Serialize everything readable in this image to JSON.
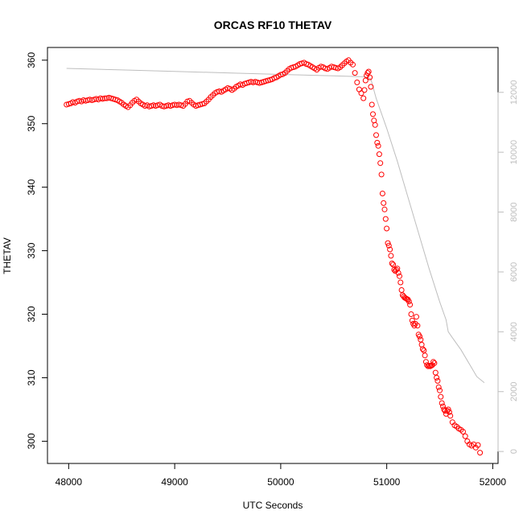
{
  "chart_data": {
    "type": "scatter",
    "title": "ORCAS RF10 THETAV",
    "xlabel": "UTC Seconds",
    "ylabel": "THETAV",
    "xlim": [
      47800,
      52050
    ],
    "ylim": [
      296.5,
      362
    ],
    "y2lim": [
      -400,
      13500
    ],
    "x_ticks": [
      48000,
      49000,
      50000,
      51000,
      52000
    ],
    "y_ticks": [
      300,
      310,
      320,
      330,
      340,
      350,
      360
    ],
    "y2_ticks": [
      0,
      2000,
      4000,
      6000,
      8000,
      10000,
      12000
    ],
    "grid": false,
    "legend": "none",
    "series": [
      {
        "type": "scatter",
        "color": "#ff0000",
        "marker": "open-circle",
        "points": [
          [
            47980,
            353.0
          ],
          [
            48000,
            353.1
          ],
          [
            48020,
            353.2
          ],
          [
            48040,
            353.4
          ],
          [
            48060,
            353.3
          ],
          [
            48080,
            353.5
          ],
          [
            48100,
            353.6
          ],
          [
            48120,
            353.5
          ],
          [
            48140,
            353.7
          ],
          [
            48160,
            353.6
          ],
          [
            48180,
            353.7
          ],
          [
            48200,
            353.8
          ],
          [
            48220,
            353.7
          ],
          [
            48240,
            353.8
          ],
          [
            48260,
            353.9
          ],
          [
            48280,
            353.8
          ],
          [
            48300,
            354.0
          ],
          [
            48320,
            353.9
          ],
          [
            48340,
            354.0
          ],
          [
            48360,
            354.0
          ],
          [
            48380,
            354.1
          ],
          [
            48400,
            354.0
          ],
          [
            48420,
            353.9
          ],
          [
            48440,
            353.8
          ],
          [
            48460,
            353.7
          ],
          [
            48480,
            353.5
          ],
          [
            48500,
            353.3
          ],
          [
            48520,
            353.0
          ],
          [
            48540,
            352.8
          ],
          [
            48560,
            352.6
          ],
          [
            48580,
            352.9
          ],
          [
            48600,
            353.3
          ],
          [
            48620,
            353.6
          ],
          [
            48640,
            353.8
          ],
          [
            48660,
            353.5
          ],
          [
            48680,
            353.2
          ],
          [
            48700,
            353.0
          ],
          [
            48720,
            352.8
          ],
          [
            48740,
            352.9
          ],
          [
            48760,
            352.7
          ],
          [
            48780,
            352.8
          ],
          [
            48800,
            352.9
          ],
          [
            48820,
            352.8
          ],
          [
            48840,
            352.9
          ],
          [
            48860,
            353.0
          ],
          [
            48880,
            352.8
          ],
          [
            48900,
            352.7
          ],
          [
            48920,
            352.8
          ],
          [
            48940,
            352.9
          ],
          [
            48960,
            352.8
          ],
          [
            48980,
            352.9
          ],
          [
            49000,
            353.0
          ],
          [
            49020,
            352.9
          ],
          [
            49040,
            353.0
          ],
          [
            49060,
            352.9
          ],
          [
            49080,
            352.8
          ],
          [
            49100,
            353.1
          ],
          [
            49120,
            353.5
          ],
          [
            49140,
            353.6
          ],
          [
            49160,
            353.3
          ],
          [
            49180,
            353.0
          ],
          [
            49200,
            352.8
          ],
          [
            49220,
            352.9
          ],
          [
            49240,
            353.0
          ],
          [
            49260,
            353.1
          ],
          [
            49280,
            353.2
          ],
          [
            49300,
            353.5
          ],
          [
            49320,
            353.8
          ],
          [
            49340,
            354.2
          ],
          [
            49360,
            354.5
          ],
          [
            49380,
            354.8
          ],
          [
            49400,
            355.0
          ],
          [
            49420,
            355.1
          ],
          [
            49440,
            355.0
          ],
          [
            49460,
            355.2
          ],
          [
            49480,
            355.4
          ],
          [
            49500,
            355.6
          ],
          [
            49520,
            355.5
          ],
          [
            49540,
            355.3
          ],
          [
            49560,
            355.5
          ],
          [
            49580,
            355.8
          ],
          [
            49600,
            356.0
          ],
          [
            49620,
            356.2
          ],
          [
            49640,
            356.1
          ],
          [
            49660,
            356.3
          ],
          [
            49680,
            356.4
          ],
          [
            49700,
            356.5
          ],
          [
            49720,
            356.6
          ],
          [
            49740,
            356.5
          ],
          [
            49760,
            356.6
          ],
          [
            49780,
            356.5
          ],
          [
            49800,
            356.4
          ],
          [
            49820,
            356.5
          ],
          [
            49840,
            356.6
          ],
          [
            49860,
            356.7
          ],
          [
            49880,
            356.8
          ],
          [
            49900,
            356.9
          ],
          [
            49920,
            357.0
          ],
          [
            49940,
            357.2
          ],
          [
            49960,
            357.3
          ],
          [
            49980,
            357.5
          ],
          [
            50000,
            357.7
          ],
          [
            50020,
            357.8
          ],
          [
            50040,
            358.0
          ],
          [
            50060,
            358.3
          ],
          [
            50080,
            358.6
          ],
          [
            50100,
            358.8
          ],
          [
            50120,
            358.9
          ],
          [
            50140,
            359.0
          ],
          [
            50160,
            359.2
          ],
          [
            50180,
            359.4
          ],
          [
            50200,
            359.5
          ],
          [
            50220,
            359.6
          ],
          [
            50240,
            359.4
          ],
          [
            50260,
            359.3
          ],
          [
            50280,
            359.1
          ],
          [
            50300,
            358.9
          ],
          [
            50320,
            358.7
          ],
          [
            50340,
            358.5
          ],
          [
            50360,
            358.8
          ],
          [
            50380,
            359.0
          ],
          [
            50400,
            358.9
          ],
          [
            50420,
            358.7
          ],
          [
            50440,
            358.6
          ],
          [
            50460,
            358.8
          ],
          [
            50480,
            359.0
          ],
          [
            50500,
            358.9
          ],
          [
            50520,
            358.8
          ],
          [
            50540,
            358.7
          ],
          [
            50560,
            358.9
          ],
          [
            50580,
            359.2
          ],
          [
            50600,
            359.5
          ],
          [
            50620,
            359.8
          ],
          [
            50640,
            360.0
          ],
          [
            50660,
            359.6
          ],
          [
            50680,
            359.3
          ],
          [
            50700,
            358.0
          ],
          [
            50720,
            356.5
          ],
          [
            50740,
            355.4
          ],
          [
            50760,
            354.8
          ],
          [
            50780,
            354.0
          ],
          [
            50790,
            355.3
          ],
          [
            50800,
            356.8
          ],
          [
            50810,
            357.6
          ],
          [
            50820,
            358.0
          ],
          [
            50830,
            358.2
          ],
          [
            50840,
            357.3
          ],
          [
            50850,
            355.8
          ],
          [
            50860,
            353.0
          ],
          [
            50870,
            351.5
          ],
          [
            50880,
            350.5
          ],
          [
            50890,
            349.8
          ],
          [
            50900,
            348.2
          ],
          [
            50910,
            347.0
          ],
          [
            50920,
            346.5
          ],
          [
            50930,
            345.2
          ],
          [
            50940,
            343.8
          ],
          [
            50950,
            342.0
          ],
          [
            50960,
            339.0
          ],
          [
            50970,
            337.5
          ],
          [
            50980,
            336.5
          ],
          [
            50990,
            335.0
          ],
          [
            51000,
            333.5
          ],
          [
            51010,
            331.2
          ],
          [
            51020,
            330.8
          ],
          [
            51030,
            330.2
          ],
          [
            51040,
            329.2
          ],
          [
            51050,
            328.0
          ],
          [
            51060,
            327.8
          ],
          [
            51070,
            327.0
          ],
          [
            51080,
            326.8
          ],
          [
            51090,
            327.0
          ],
          [
            51100,
            327.2
          ],
          [
            51110,
            326.5
          ],
          [
            51120,
            326.0
          ],
          [
            51130,
            325.0
          ],
          [
            51140,
            323.8
          ],
          [
            51150,
            323.0
          ],
          [
            51160,
            322.8
          ],
          [
            51170,
            322.6
          ],
          [
            51180,
            322.5
          ],
          [
            51190,
            322.4
          ],
          [
            51200,
            322.3
          ],
          [
            51210,
            322.0
          ],
          [
            51220,
            321.5
          ],
          [
            51230,
            320.0
          ],
          [
            51240,
            319.0
          ],
          [
            51250,
            318.5
          ],
          [
            51260,
            318.2
          ],
          [
            51270,
            318.5
          ],
          [
            51280,
            319.6
          ],
          [
            51290,
            318.2
          ],
          [
            51300,
            316.8
          ],
          [
            51310,
            316.5
          ],
          [
            51320,
            316.0
          ],
          [
            51330,
            315.2
          ],
          [
            51340,
            314.5
          ],
          [
            51350,
            314.3
          ],
          [
            51360,
            313.5
          ],
          [
            51370,
            312.5
          ],
          [
            51380,
            312.0
          ],
          [
            51390,
            311.8
          ],
          [
            51400,
            311.9
          ],
          [
            51410,
            311.8
          ],
          [
            51420,
            311.9
          ],
          [
            51430,
            312.0
          ],
          [
            51440,
            312.5
          ],
          [
            51450,
            312.3
          ],
          [
            51460,
            310.8
          ],
          [
            51470,
            310.0
          ],
          [
            51480,
            309.5
          ],
          [
            51490,
            308.5
          ],
          [
            51500,
            308.0
          ],
          [
            51510,
            307.0
          ],
          [
            51520,
            306.0
          ],
          [
            51530,
            305.5
          ],
          [
            51540,
            305.0
          ],
          [
            51550,
            304.8
          ],
          [
            51560,
            304.3
          ],
          [
            51570,
            304.8
          ],
          [
            51580,
            305.0
          ],
          [
            51590,
            304.6
          ],
          [
            51600,
            304.0
          ],
          [
            51620,
            303.0
          ],
          [
            51640,
            302.5
          ],
          [
            51660,
            302.3
          ],
          [
            51680,
            302.0
          ],
          [
            51700,
            301.8
          ],
          [
            51720,
            301.5
          ],
          [
            51740,
            300.8
          ],
          [
            51760,
            300.0
          ],
          [
            51780,
            299.5
          ],
          [
            51800,
            299.3
          ],
          [
            51820,
            299.5
          ],
          [
            51840,
            299.0
          ],
          [
            51860,
            299.4
          ],
          [
            51880,
            298.2
          ]
        ]
      },
      {
        "type": "line",
        "color": "#bebebe",
        "axis": "right",
        "points": [
          [
            47980,
            12800
          ],
          [
            48500,
            12750
          ],
          [
            49000,
            12700
          ],
          [
            49500,
            12650
          ],
          [
            50000,
            12600
          ],
          [
            50500,
            12550
          ],
          [
            50800,
            12520
          ],
          [
            50850,
            12450
          ],
          [
            50900,
            11800
          ],
          [
            51000,
            10800
          ],
          [
            51100,
            9700
          ],
          [
            51200,
            8500
          ],
          [
            51300,
            7300
          ],
          [
            51400,
            6100
          ],
          [
            51500,
            5000
          ],
          [
            51560,
            4400
          ],
          [
            51580,
            4000
          ],
          [
            51620,
            3800
          ],
          [
            51700,
            3400
          ],
          [
            51800,
            2800
          ],
          [
            51850,
            2500
          ],
          [
            51920,
            2300
          ]
        ]
      }
    ]
  }
}
